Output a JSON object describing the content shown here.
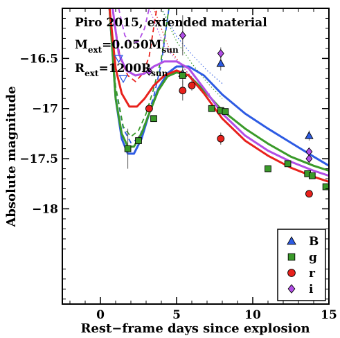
{
  "chart_data": {
    "type": "line",
    "xlabel": "Rest−frame days since explosion",
    "ylabel": "Absolute magnitude",
    "xlim": [
      -2.5,
      15
    ],
    "ylim": [
      -16,
      -18.95
    ],
    "y_inverted": true,
    "xticks": [
      0,
      5,
      10,
      15
    ],
    "xtick_labels": [
      "0",
      "5",
      "10",
      "15"
    ],
    "yticks": [
      -16.5,
      -17,
      -17.5,
      -18
    ],
    "ytick_labels": [
      "−16.5",
      "−17",
      "−17.5",
      "−18"
    ],
    "annotation": {
      "line1": "Piro 2015, extended material",
      "line2_main": "M",
      "line2_sub": "ext",
      "line2_mid": "=0.050M",
      "line2_sub2": "sun",
      "line3_main": "R",
      "line3_sub": "ext",
      "line3_mid": "=1200R",
      "line3_sub2": "sun"
    },
    "legend_position": "bottom-right",
    "legend": [
      {
        "label": "B",
        "color": "#2d5be3",
        "marker": "triangle"
      },
      {
        "label": "g",
        "color": "#3a9a2a",
        "marker": "square"
      },
      {
        "label": "r",
        "color": "#e8211c",
        "marker": "circle"
      },
      {
        "label": "i",
        "color": "#b14ee6",
        "marker": "diamond"
      }
    ],
    "series": [
      {
        "name": "B",
        "color": "#2d5be3",
        "marker": "triangle",
        "total": [
          [
            0.6,
            -16
          ],
          [
            1.0,
            -16.9
          ],
          [
            1.4,
            -17.3
          ],
          [
            1.8,
            -17.45
          ],
          [
            2.2,
            -17.45
          ],
          [
            2.7,
            -17.3
          ],
          [
            3.2,
            -17.05
          ],
          [
            3.8,
            -16.8
          ],
          [
            4.4,
            -16.65
          ],
          [
            5.0,
            -16.58
          ],
          [
            5.8,
            -16.58
          ],
          [
            6.8,
            -16.67
          ],
          [
            8,
            -16.86
          ],
          [
            9.5,
            -17.05
          ],
          [
            11,
            -17.2
          ],
          [
            12.5,
            -17.34
          ],
          [
            14,
            -17.48
          ],
          [
            15,
            -17.57
          ]
        ],
        "cooling": [
          [
            0.6,
            -16
          ],
          [
            1.0,
            -16.8
          ],
          [
            1.5,
            -17.2
          ],
          [
            2.0,
            -17.34
          ],
          [
            2.5,
            -17.3
          ],
          [
            3.0,
            -17.12
          ],
          [
            3.5,
            -16.88
          ],
          [
            4.0,
            -16.55
          ],
          [
            4.5,
            -16.0
          ]
        ],
        "nickel": [
          [
            4.0,
            -16.0
          ],
          [
            5,
            -16.28
          ],
          [
            6,
            -16.46
          ],
          [
            7,
            -16.62
          ],
          [
            8,
            -16.75
          ]
        ],
        "points": [
          {
            "x": 1.5,
            "y": -16.7,
            "upper_limit": true
          },
          {
            "x": 1.2,
            "y": -16.5,
            "upper_limit": true
          },
          {
            "x": 5.4,
            "y": -16.65,
            "err": 0.05
          },
          {
            "x": 7.9,
            "y": -16.55,
            "err": 0.07
          },
          {
            "x": 13.7,
            "y": -17.27,
            "err": 0.05
          }
        ]
      },
      {
        "name": "g",
        "color": "#3a9a2a",
        "marker": "square",
        "total": [
          [
            0.6,
            -16
          ],
          [
            1.0,
            -16.9
          ],
          [
            1.4,
            -17.25
          ],
          [
            1.8,
            -17.38
          ],
          [
            2.2,
            -17.38
          ],
          [
            2.7,
            -17.25
          ],
          [
            3.2,
            -17.05
          ],
          [
            3.8,
            -16.82
          ],
          [
            4.4,
            -16.68
          ],
          [
            5.0,
            -16.64
          ],
          [
            5.8,
            -16.67
          ],
          [
            6.8,
            -16.82
          ],
          [
            8,
            -17.02
          ],
          [
            9.5,
            -17.2
          ],
          [
            11,
            -17.35
          ],
          [
            12.5,
            -17.48
          ],
          [
            14,
            -17.57
          ],
          [
            15,
            -17.62
          ]
        ],
        "cooling": [
          [
            0.6,
            -16
          ],
          [
            1.0,
            -16.78
          ],
          [
            1.5,
            -17.18
          ],
          [
            2.0,
            -17.28
          ],
          [
            2.5,
            -17.22
          ],
          [
            3.0,
            -17.05
          ],
          [
            3.5,
            -16.8
          ],
          [
            4.0,
            -16.5
          ],
          [
            4.5,
            -16.0
          ]
        ],
        "nickel": [
          [
            4.0,
            -16.0
          ],
          [
            5,
            -16.33
          ],
          [
            6,
            -16.55
          ],
          [
            7,
            -16.74
          ],
          [
            8,
            -16.9
          ]
        ],
        "points": [
          {
            "x": 1.8,
            "y": -17.4,
            "err": 0.2
          },
          {
            "x": 2.5,
            "y": -17.32,
            "err": 0.05
          },
          {
            "x": 3.5,
            "y": -17.1
          },
          {
            "x": 5.4,
            "y": -16.67,
            "err": 0.1
          },
          {
            "x": 7.3,
            "y": -17.0
          },
          {
            "x": 7.9,
            "y": -17.02
          },
          {
            "x": 8.2,
            "y": -17.03
          },
          {
            "x": 11.0,
            "y": -17.6
          },
          {
            "x": 12.3,
            "y": -17.55
          },
          {
            "x": 13.6,
            "y": -17.65
          },
          {
            "x": 13.9,
            "y": -17.67
          },
          {
            "x": 14.8,
            "y": -17.78
          }
        ]
      },
      {
        "name": "r",
        "color": "#e8211c",
        "marker": "circle",
        "total": [
          [
            0.6,
            -16
          ],
          [
            1.0,
            -16.6
          ],
          [
            1.4,
            -16.85
          ],
          [
            1.9,
            -16.98
          ],
          [
            2.4,
            -16.98
          ],
          [
            2.9,
            -16.9
          ],
          [
            3.5,
            -16.77
          ],
          [
            4.2,
            -16.67
          ],
          [
            5.0,
            -16.62
          ],
          [
            5.8,
            -16.67
          ],
          [
            6.8,
            -16.85
          ],
          [
            8,
            -17.1
          ],
          [
            9.5,
            -17.32
          ],
          [
            11,
            -17.47
          ],
          [
            12.5,
            -17.59
          ],
          [
            14,
            -17.68
          ],
          [
            15,
            -17.73
          ]
        ],
        "cooling": [
          [
            0.8,
            -16
          ],
          [
            1.3,
            -16.5
          ],
          [
            1.8,
            -16.67
          ],
          [
            2.3,
            -16.73
          ],
          [
            2.8,
            -16.65
          ],
          [
            3.2,
            -16.48
          ],
          [
            3.7,
            -16.0
          ]
        ],
        "nickel": [
          [
            3.5,
            -16.0
          ],
          [
            4.5,
            -16.4
          ],
          [
            5.5,
            -16.6
          ],
          [
            6.5,
            -16.8
          ],
          [
            7.5,
            -16.93
          ]
        ],
        "points": [
          {
            "x": 3.2,
            "y": -17.0
          },
          {
            "x": 5.4,
            "y": -16.82,
            "err": 0.1
          },
          {
            "x": 6.0,
            "y": -16.77,
            "err": 0.05
          },
          {
            "x": 7.9,
            "y": -17.3,
            "err": 0.06
          },
          {
            "x": 13.7,
            "y": -17.85
          }
        ]
      },
      {
        "name": "i",
        "color": "#b14ee6",
        "marker": "diamond",
        "total": [
          [
            0.8,
            -16
          ],
          [
            1.2,
            -16.45
          ],
          [
            1.7,
            -16.62
          ],
          [
            2.3,
            -16.67
          ],
          [
            2.9,
            -16.65
          ],
          [
            3.5,
            -16.58
          ],
          [
            4.2,
            -16.53
          ],
          [
            5.0,
            -16.53
          ],
          [
            5.8,
            -16.6
          ],
          [
            6.8,
            -16.8
          ],
          [
            8,
            -17.05
          ],
          [
            9.5,
            -17.27
          ],
          [
            11,
            -17.42
          ],
          [
            12.5,
            -17.53
          ],
          [
            14,
            -17.62
          ],
          [
            15,
            -17.67
          ]
        ],
        "cooling": [
          [
            1.2,
            -16
          ],
          [
            1.6,
            -16.27
          ],
          [
            2.0,
            -16.35
          ],
          [
            2.5,
            -16.33
          ],
          [
            2.9,
            -16.2
          ],
          [
            3.2,
            -16.0
          ]
        ],
        "nickel": [
          [
            3.2,
            -16.0
          ],
          [
            4.2,
            -16.38
          ],
          [
            5.2,
            -16.55
          ],
          [
            6.2,
            -16.72
          ],
          [
            7.2,
            -16.86
          ]
        ],
        "points": [
          {
            "x": 3.2,
            "y": -16.63
          },
          {
            "x": 5.4,
            "y": -16.27,
            "err": 0.2
          },
          {
            "x": 7.9,
            "y": -16.45,
            "err": 0.06
          },
          {
            "x": 13.7,
            "y": -17.43
          },
          {
            "x": 13.7,
            "y": -17.5
          }
        ]
      }
    ]
  }
}
